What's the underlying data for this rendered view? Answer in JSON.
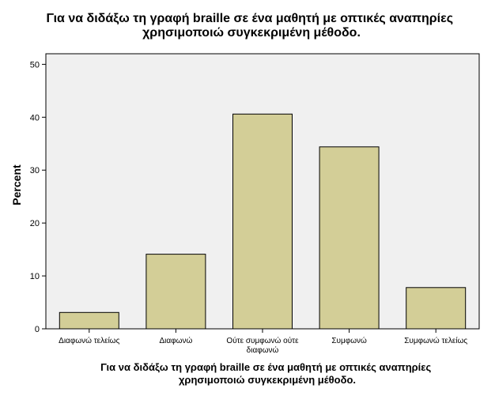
{
  "chart_data": {
    "type": "bar",
    "title": "Για να διδάξω τη γραφή braille σε ένα μαθητή με οπτικές αναπηρίες χρησιμοποιώ συγκεκριμένη μέθοδο.",
    "title_lines": [
      "Για να διδάξω τη γραφή braille σε ένα μαθητή με οπτικές αναπηρίες",
      "χρησιμοποιώ συγκεκριμένη μέθοδο."
    ],
    "xlabel": "Για να διδάξω τη γραφή braille σε ένα μαθητή με οπτικές αναπηρίες χρησιμοποιώ συγκεκριμένη μέθοδο.",
    "xlabel_lines": [
      "Για να διδάξω τη γραφή braille σε ένα μαθητή με οπτικές αναπηρίες",
      "χρησιμοποιώ συγκεκριμένη μέθοδο."
    ],
    "ylabel": "Percent",
    "categories": [
      "Διαφωνώ τελείως",
      "Διαφωνώ",
      "Ούτε συμφωνώ ούτε διαφωνώ",
      "Συμφωνώ",
      "Συμφωνώ τελείως"
    ],
    "category_lines": [
      [
        "Διαφωνώ τελείως"
      ],
      [
        "Διαφωνώ"
      ],
      [
        "Ούτε συμφωνώ ούτε",
        "διαφωνώ"
      ],
      [
        "Συμφωνώ"
      ],
      [
        "Συμφωνώ τελείως"
      ]
    ],
    "values": [
      3.1,
      14.1,
      40.6,
      34.4,
      7.8
    ],
    "ylim": [
      0,
      52
    ],
    "yticks": [
      0,
      10,
      20,
      30,
      40,
      50
    ],
    "grid": false,
    "legend": "none",
    "colors": {
      "bar_fill": "#d3ce97",
      "bar_stroke": "#000000",
      "plot_background": "#f0f0f0",
      "page_background": "#ffffff"
    }
  }
}
